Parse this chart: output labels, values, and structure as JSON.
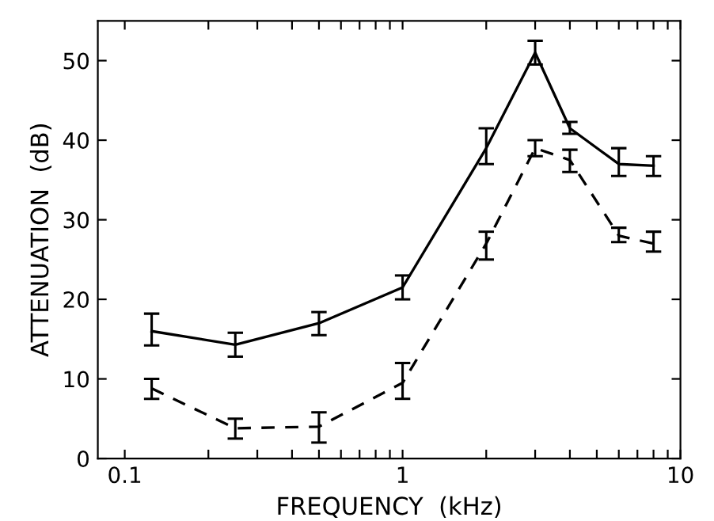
{
  "chart_data": {
    "type": "line",
    "xlabel": "FREQUENCY  (kHz)",
    "ylabel": "ATTENUATION  (dB)",
    "log": "x",
    "xlim": [
      0.08,
      10
    ],
    "ylim": [
      0,
      55
    ],
    "xticks": [
      0.1,
      {
        "value": 0.2,
        "label": null
      },
      {
        "value": 0.3,
        "label": null
      },
      {
        "value": 0.4,
        "label": null
      },
      {
        "value": 0.5,
        "label": null
      },
      {
        "value": 0.6,
        "label": null
      },
      {
        "value": 0.7,
        "label": null
      },
      {
        "value": 0.8,
        "label": null
      },
      {
        "value": 0.9,
        "label": null
      },
      1,
      {
        "value": 2,
        "label": null
      },
      {
        "value": 3,
        "label": null
      },
      {
        "value": 4,
        "label": null
      },
      {
        "value": 5,
        "label": null
      },
      {
        "value": 6,
        "label": null
      },
      {
        "value": 7,
        "label": null
      },
      {
        "value": 8,
        "label": null
      },
      {
        "value": 9,
        "label": null
      },
      10
    ],
    "yticks": [
      0,
      10,
      20,
      30,
      40,
      50
    ],
    "grid": false,
    "legend": false,
    "marker": "none",
    "x": [
      0.125,
      0.25,
      0.5,
      1,
      2,
      3,
      4,
      6,
      8
    ],
    "series": [
      {
        "color": "#000000",
        "line_style": "solid",
        "values": [
          16,
          14.3,
          17,
          21.5,
          39,
          51,
          41.5,
          37,
          36.8
        ],
        "errors": [
          [
            14.2,
            18.2
          ],
          [
            12.8,
            15.8
          ],
          [
            15.5,
            18.4
          ],
          [
            20,
            23
          ],
          [
            37,
            41.5
          ],
          [
            49.5,
            52.5
          ],
          [
            40.8,
            42.3
          ],
          [
            35.5,
            39
          ],
          [
            35.5,
            38
          ]
        ]
      },
      {
        "color": "#000000",
        "line_style": "dashed",
        "values": [
          8.8,
          3.8,
          4,
          9.5,
          27,
          39,
          37.5,
          28,
          27
        ],
        "errors": [
          [
            7.5,
            10
          ],
          [
            2.5,
            5
          ],
          [
            2,
            5.8
          ],
          [
            7.5,
            12
          ],
          [
            25,
            28.5
          ],
          [
            38,
            40
          ],
          [
            36,
            38.8
          ],
          [
            27.2,
            29
          ],
          [
            26,
            28.5
          ]
        ]
      }
    ]
  }
}
